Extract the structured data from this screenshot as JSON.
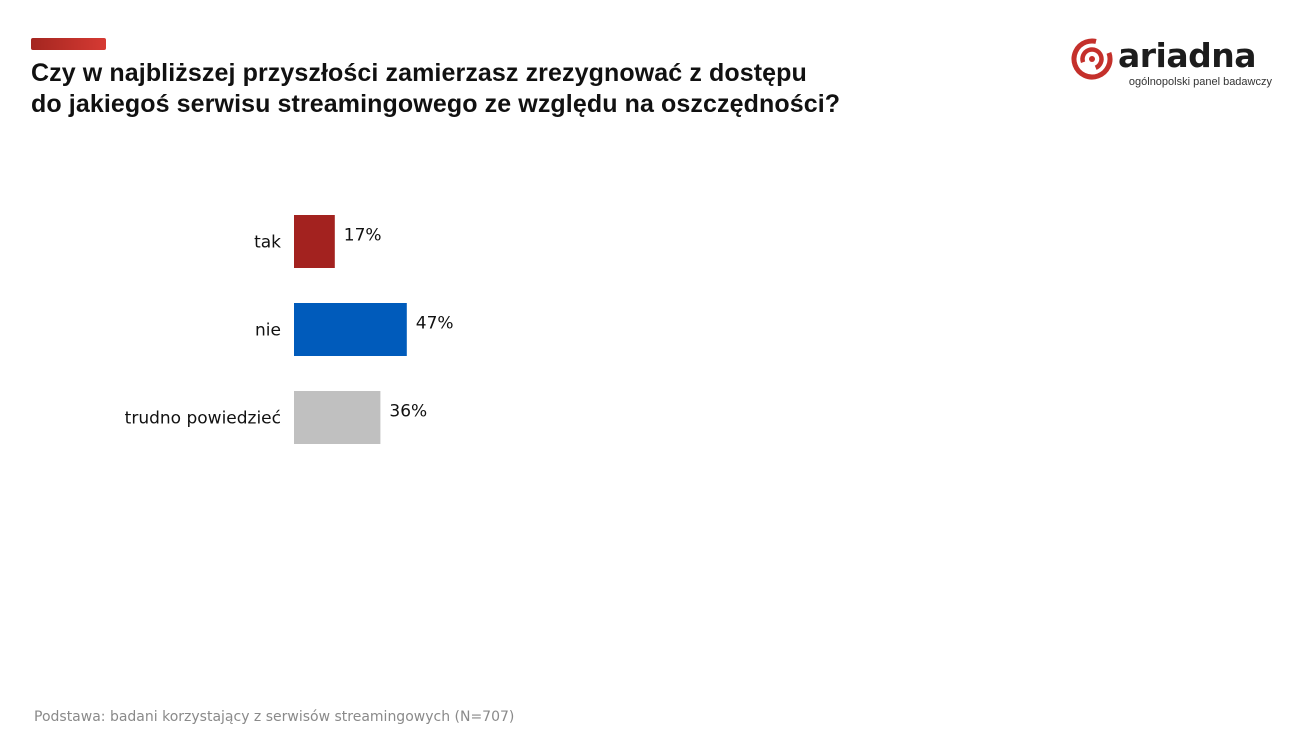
{
  "header": {
    "title_line1": "Czy w najbliższej przyszłości zamierzasz zrezygnować z dostępu",
    "title_line2": "do jakiegoś serwisu streamingowego ze względu na oszczędności?",
    "accent_color": "#c4302b"
  },
  "logo": {
    "wordmark": "ariadna",
    "tagline": "ogólnopolski panel badawczy",
    "icon": "ariadna-spiral-icon",
    "color": "#c4302b"
  },
  "chart_data": {
    "type": "bar",
    "orientation": "horizontal",
    "categories": [
      "tak",
      "nie",
      "trudno powiedzieć"
    ],
    "values": [
      17,
      47,
      36
    ],
    "value_labels": [
      "17%",
      "47%",
      "36%"
    ],
    "unit": "%",
    "colors": [
      "#a3221f",
      "#005bbb",
      "#c0c0c0"
    ],
    "grid": false,
    "legend": "none"
  },
  "footer": {
    "note": "Podstawa: badani korzystający z serwisów streamingowych (N=707)"
  }
}
